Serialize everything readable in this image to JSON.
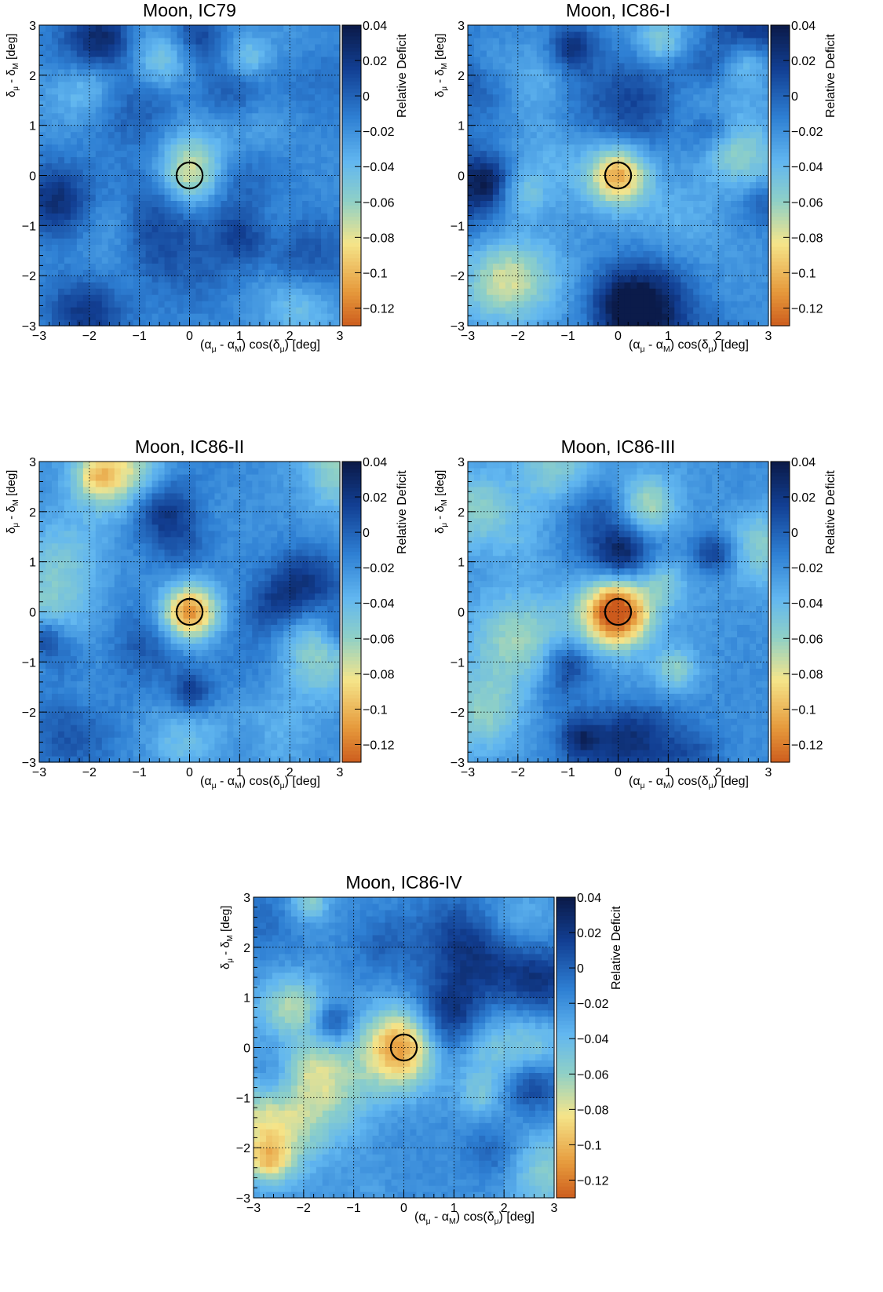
{
  "colors": {
    "deep": "#0b1b4a",
    "dark": "#123f93",
    "mid": "#2e7fd3",
    "light": "#62b7f0",
    "teal": "#8fd0c6",
    "yellow": "#f5e58a",
    "orange": "#e69a3c",
    "red": "#cc5a1c"
  },
  "chart_data": [
    {
      "type": "heatmap",
      "title": "Moon, IC79",
      "xlabel_parts": [
        "(α",
        "μ",
        " - α",
        "M",
        ") cos(δ",
        "μ",
        ") [deg]"
      ],
      "ylabel_parts": [
        "δ",
        "μ",
        " - δ",
        "M",
        " [deg]"
      ],
      "colorbar_label": "Relative Deficit",
      "xlim": [
        -3,
        3
      ],
      "ylim": [
        -3,
        3
      ],
      "xticks": [
        "−3",
        "−2",
        "−1",
        "0",
        "1",
        "2",
        "3"
      ],
      "yticks": [
        "−3",
        "−2",
        "−1",
        "0",
        "1",
        "2",
        "3"
      ],
      "zlim": [
        -0.13,
        0.04
      ],
      "zticks": [
        "0.04",
        "0.02",
        "0",
        "−0.02",
        "−0.04",
        "−0.06",
        "−0.08",
        "−0.1",
        "−0.12"
      ],
      "zvalues": [
        0.04,
        0.02,
        0,
        -0.02,
        -0.04,
        -0.06,
        -0.08,
        -0.1,
        -0.12
      ],
      "circle_center": [
        0,
        0
      ],
      "circle_radius": 0.26,
      "grid": true,
      "peak_deficit": -0.085,
      "peak_width": 0.45,
      "seed": 3
    },
    {
      "type": "heatmap",
      "title": "Moon, IC86-I",
      "xlabel_parts": [
        "(α",
        "μ",
        " - α",
        "M",
        ") cos(δ",
        "μ",
        ") [deg]"
      ],
      "ylabel_parts": [
        "δ",
        "μ",
        " - δ",
        "M",
        " [deg]"
      ],
      "colorbar_label": "Relative Deficit",
      "xlim": [
        -3,
        3
      ],
      "ylim": [
        -3,
        3
      ],
      "xticks": [
        "−3",
        "−2",
        "−1",
        "0",
        "1",
        "2",
        "3"
      ],
      "yticks": [
        "−3",
        "−2",
        "−1",
        "0",
        "1",
        "2",
        "3"
      ],
      "zlim": [
        -0.13,
        0.04
      ],
      "zticks": [
        "0.04",
        "0.02",
        "0",
        "−0.02",
        "−0.04",
        "−0.06",
        "−0.08",
        "−0.1",
        "−0.12"
      ],
      "zvalues": [
        0.04,
        0.02,
        0,
        -0.02,
        -0.04,
        -0.06,
        -0.08,
        -0.1,
        -0.12
      ],
      "circle_center": [
        0,
        0
      ],
      "circle_radius": 0.26,
      "grid": true,
      "peak_deficit": -0.105,
      "peak_width": 0.42,
      "seed": 11
    },
    {
      "type": "heatmap",
      "title": "Moon, IC86-II",
      "xlabel_parts": [
        "(α",
        "μ",
        " - α",
        "M",
        ") cos(δ",
        "μ",
        ") [deg]"
      ],
      "ylabel_parts": [
        "δ",
        "μ",
        " - δ",
        "M",
        " [deg]"
      ],
      "colorbar_label": "Relative Deficit",
      "xlim": [
        -3,
        3
      ],
      "ylim": [
        -3,
        3
      ],
      "xticks": [
        "−3",
        "−2",
        "−1",
        "0",
        "1",
        "2",
        "3"
      ],
      "yticks": [
        "−3",
        "−2",
        "−1",
        "0",
        "1",
        "2",
        "3"
      ],
      "zlim": [
        -0.13,
        0.04
      ],
      "zticks": [
        "0.04",
        "0.02",
        "0",
        "−0.02",
        "−0.04",
        "−0.06",
        "−0.08",
        "−0.1",
        "−0.12"
      ],
      "zvalues": [
        0.04,
        0.02,
        0,
        -0.02,
        -0.04,
        -0.06,
        -0.08,
        -0.1,
        -0.12
      ],
      "circle_center": [
        0,
        0
      ],
      "circle_radius": 0.26,
      "grid": true,
      "peak_deficit": -0.115,
      "peak_width": 0.4,
      "seed": 23
    },
    {
      "type": "heatmap",
      "title": "Moon, IC86-III",
      "xlabel_parts": [
        "(α",
        "μ",
        " - α",
        "M",
        ") cos(δ",
        "μ",
        ") [deg]"
      ],
      "ylabel_parts": [
        "δ",
        "μ",
        " - δ",
        "M",
        " [deg]"
      ],
      "colorbar_label": "Relative Deficit",
      "xlim": [
        -3,
        3
      ],
      "ylim": [
        -3,
        3
      ],
      "xticks": [
        "−3",
        "−2",
        "−1",
        "0",
        "1",
        "2",
        "3"
      ],
      "yticks": [
        "−3",
        "−2",
        "−1",
        "0",
        "1",
        "2",
        "3"
      ],
      "zlim": [
        -0.13,
        0.04
      ],
      "zticks": [
        "0.04",
        "0.02",
        "0",
        "−0.02",
        "−0.04",
        "−0.06",
        "−0.08",
        "−0.1",
        "−0.12"
      ],
      "zvalues": [
        0.04,
        0.02,
        0,
        -0.02,
        -0.04,
        -0.06,
        -0.08,
        -0.1,
        -0.12
      ],
      "circle_center": [
        0,
        0
      ],
      "circle_radius": 0.26,
      "grid": true,
      "peak_deficit": -0.112,
      "peak_width": 0.5,
      "seed": 37
    },
    {
      "type": "heatmap",
      "title": "Moon, IC86-IV",
      "xlabel_parts": [
        "(α",
        "μ",
        " - α",
        "M",
        ") cos(δ",
        "μ",
        ") [deg]"
      ],
      "ylabel_parts": [
        "δ",
        "μ",
        " - δ",
        "M",
        " [deg]"
      ],
      "colorbar_label": "Relative Deficit",
      "xlim": [
        -3,
        3
      ],
      "ylim": [
        -3,
        3
      ],
      "xticks": [
        "−3",
        "−2",
        "−1",
        "0",
        "1",
        "2",
        "3"
      ],
      "yticks": [
        "−3",
        "−2",
        "−1",
        "0",
        "1",
        "2",
        "3"
      ],
      "zlim": [
        -0.13,
        0.04
      ],
      "zticks": [
        "0.04",
        "0.02",
        "0",
        "−0.02",
        "−0.04",
        "−0.06",
        "−0.08",
        "−0.1",
        "−0.12"
      ],
      "zvalues": [
        0.04,
        0.02,
        0,
        -0.02,
        -0.04,
        -0.06,
        -0.08,
        -0.1,
        -0.12
      ],
      "circle_center": [
        0,
        0
      ],
      "circle_radius": 0.26,
      "grid": true,
      "peak_deficit": -0.118,
      "peak_width": 0.55,
      "seed": 53
    }
  ]
}
